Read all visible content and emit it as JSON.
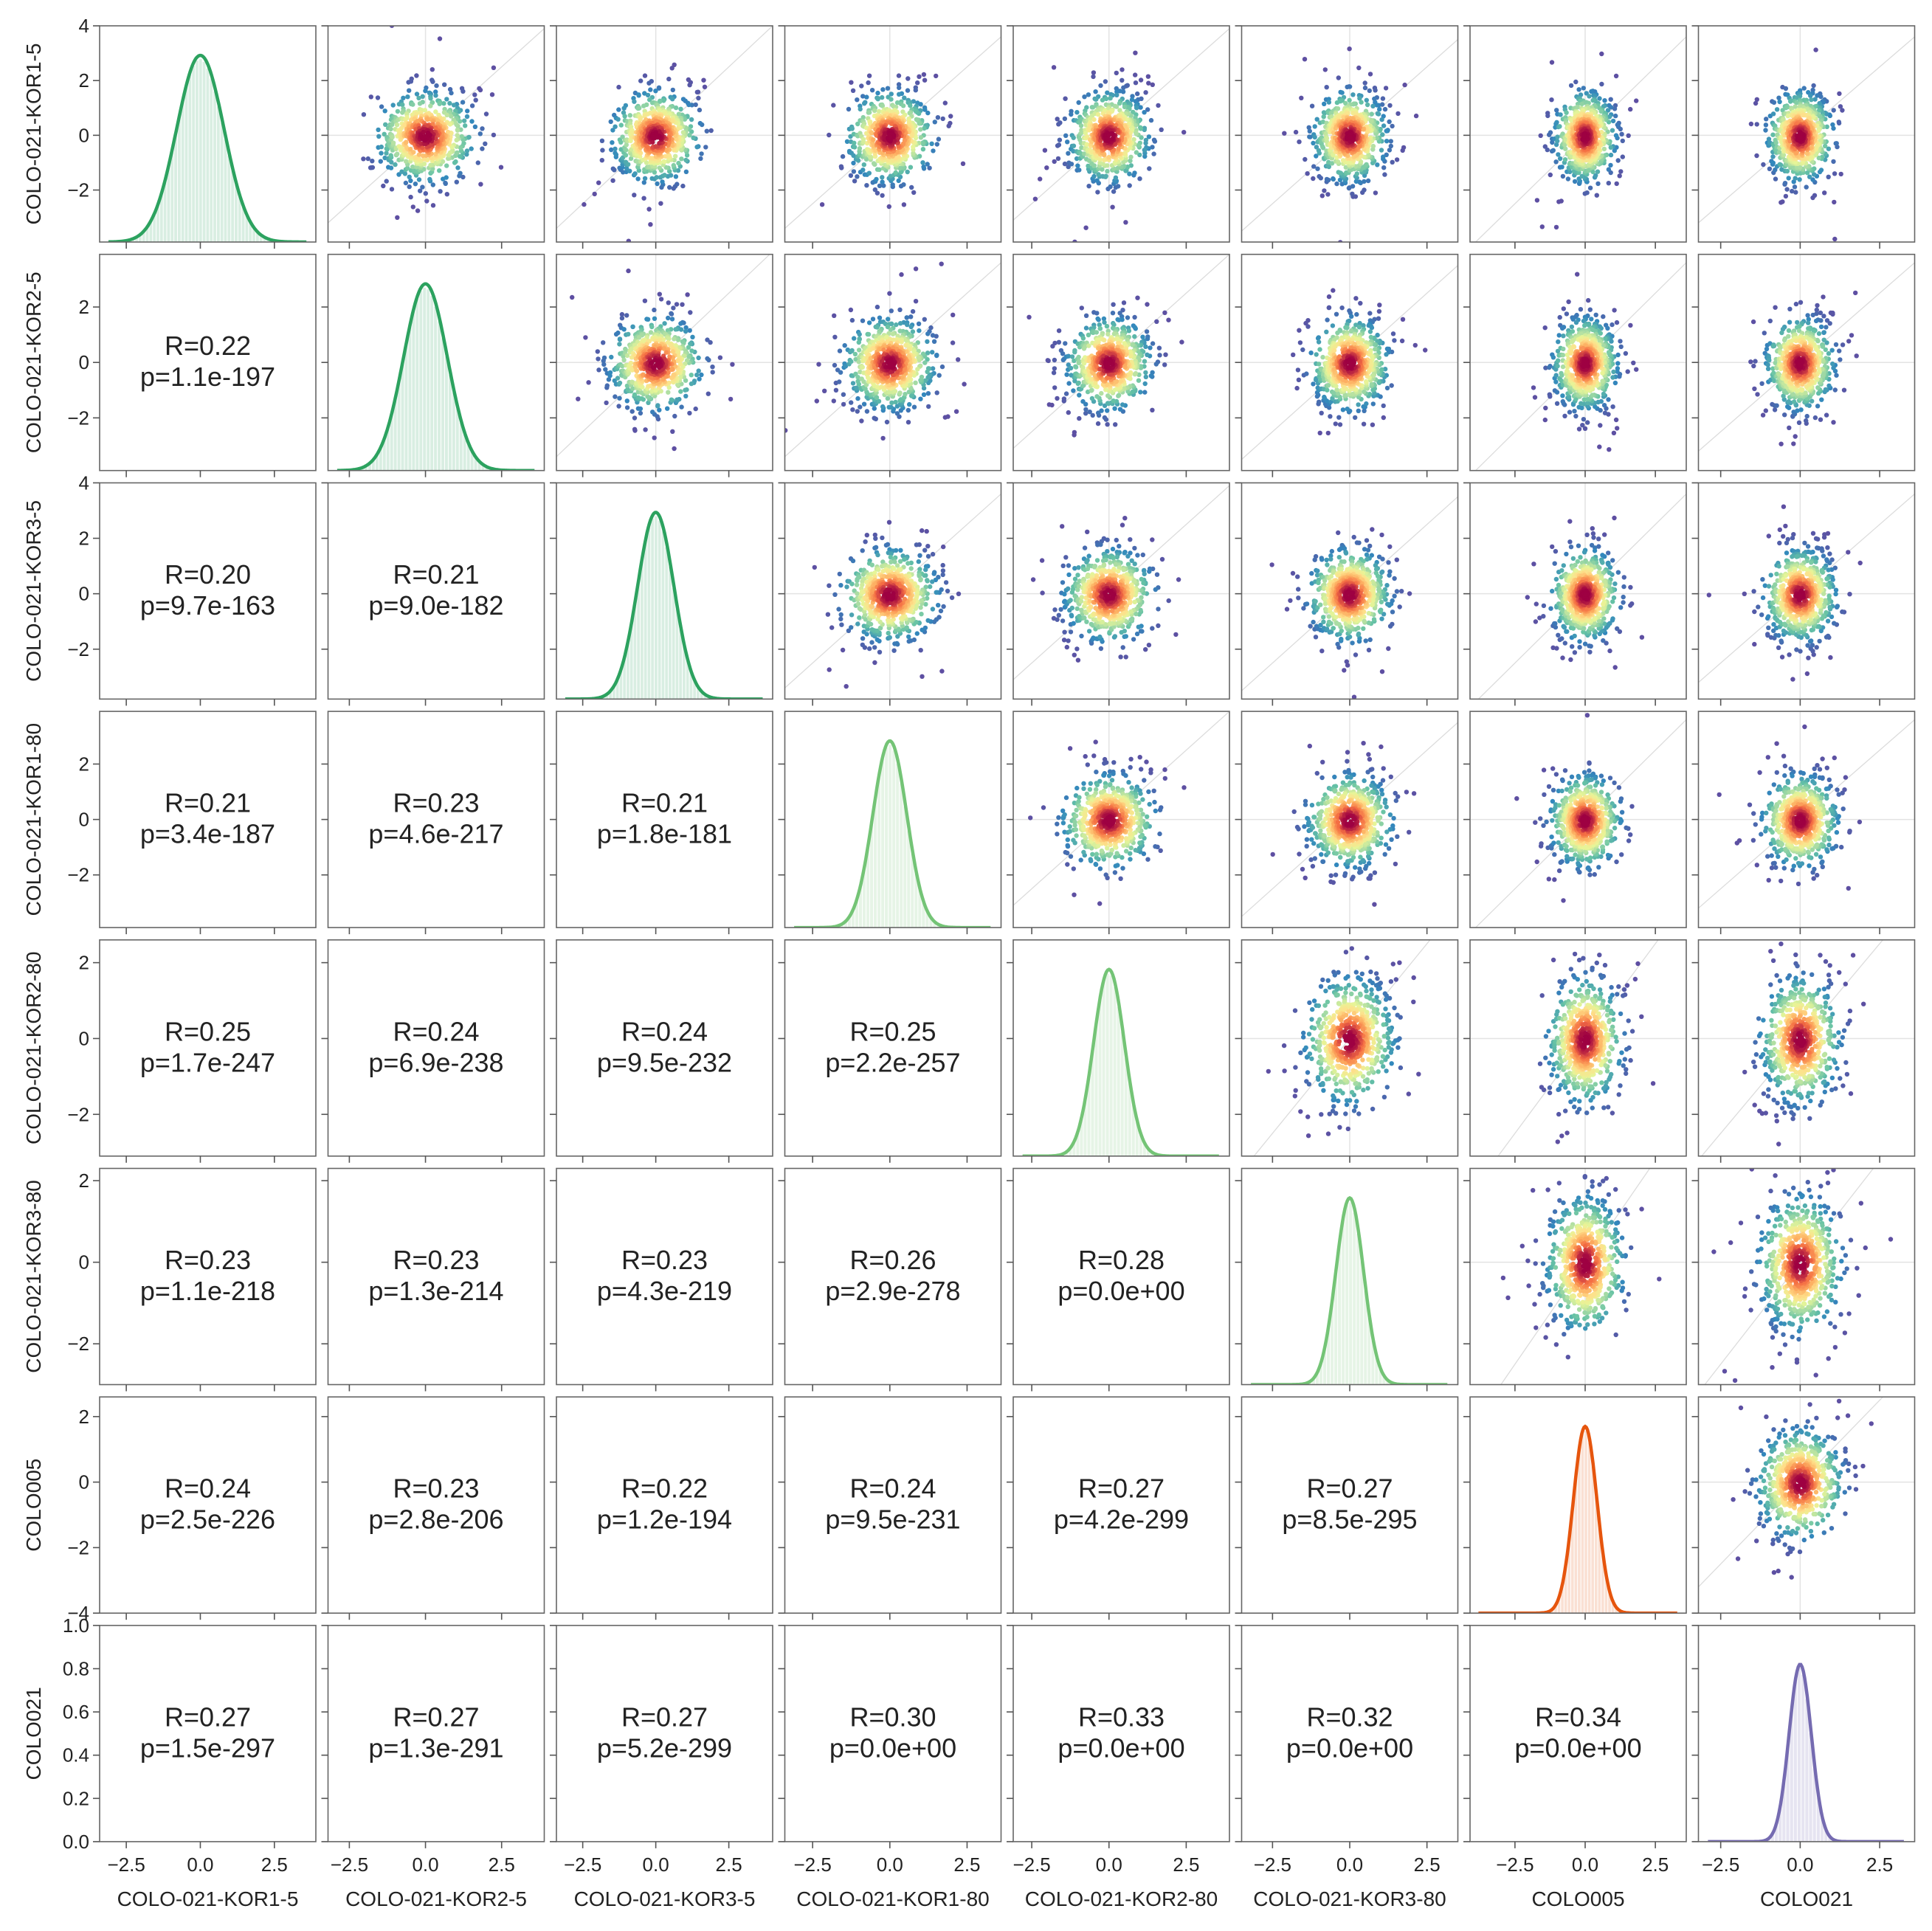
{
  "chart_data": {
    "type": "pairplot",
    "variables": [
      "COLO-021-KOR1-5",
      "COLO-021-KOR2-5",
      "COLO-021-KOR3-5",
      "COLO-021-KOR1-80",
      "COLO-021-KOR2-80",
      "COLO-021-KOR3-80",
      "COLO005",
      "COLO021"
    ],
    "diag_colors": [
      "#2ca25f",
      "#2ca25f",
      "#2ca25f",
      "#74c476",
      "#74c476",
      "#74c476",
      "#e6550d",
      "#756bb1"
    ],
    "x_ticks": [
      -2.5,
      0.0,
      2.5
    ],
    "x_tick_labels": [
      "−2.5",
      "0.0",
      "2.5"
    ],
    "x_ranges": [
      [
        -3.4,
        3.9
      ],
      [
        -3.2,
        3.9
      ],
      [
        -3.4,
        4.0
      ],
      [
        -3.4,
        3.6
      ],
      [
        -3.1,
        3.9
      ],
      [
        -3.5,
        3.5
      ],
      [
        -4.1,
        3.6
      ],
      [
        -3.2,
        3.6
      ]
    ],
    "y_axes": [
      {
        "ylim": [
          -3.9,
          4.0
        ],
        "ticks": [
          -2,
          0,
          2,
          4
        ],
        "labels": [
          "−2",
          "0",
          "2",
          "4"
        ]
      },
      {
        "ylim": [
          -3.9,
          3.9
        ],
        "ticks": [
          -2,
          0,
          2
        ],
        "labels": [
          "−2",
          "0",
          "2"
        ]
      },
      {
        "ylim": [
          -3.8,
          4.0
        ],
        "ticks": [
          -2,
          0,
          2,
          4
        ],
        "labels": [
          "−2",
          "0",
          "2",
          "4"
        ]
      },
      {
        "ylim": [
          -3.9,
          3.9
        ],
        "ticks": [
          -2,
          0,
          2
        ],
        "labels": [
          "−2",
          "0",
          "2"
        ]
      },
      {
        "ylim": [
          -3.1,
          2.6
        ],
        "ticks": [
          -2,
          0,
          2
        ],
        "labels": [
          "−2",
          "0",
          "2"
        ]
      },
      {
        "ylim": [
          -3.0,
          2.3
        ],
        "ticks": [
          -2,
          0,
          2
        ],
        "labels": [
          "−2",
          "0",
          "2"
        ]
      },
      {
        "ylim": [
          -4.0,
          2.6
        ],
        "ticks": [
          -4,
          -2,
          0,
          2
        ],
        "labels": [
          "−4",
          "−2",
          "0",
          "2"
        ]
      },
      {
        "ylim": [
          0.0,
          1.0
        ],
        "ticks": [
          0.0,
          0.2,
          0.4,
          0.6,
          0.8,
          1.0
        ],
        "labels": [
          "0.0",
          "0.2",
          "0.4",
          "0.6",
          "0.8",
          "1.0"
        ]
      }
    ],
    "correlations": [
      {
        "row": 1,
        "col": 0,
        "r": "R=0.22",
        "p": "p=1.1e-197"
      },
      {
        "row": 2,
        "col": 0,
        "r": "R=0.20",
        "p": "p=9.7e-163"
      },
      {
        "row": 2,
        "col": 1,
        "r": "R=0.21",
        "p": "p=9.0e-182"
      },
      {
        "row": 3,
        "col": 0,
        "r": "R=0.21",
        "p": "p=3.4e-187"
      },
      {
        "row": 3,
        "col": 1,
        "r": "R=0.23",
        "p": "p=4.6e-217"
      },
      {
        "row": 3,
        "col": 2,
        "r": "R=0.21",
        "p": "p=1.8e-181"
      },
      {
        "row": 4,
        "col": 0,
        "r": "R=0.25",
        "p": "p=1.7e-247"
      },
      {
        "row": 4,
        "col": 1,
        "r": "R=0.24",
        "p": "p=6.9e-238"
      },
      {
        "row": 4,
        "col": 2,
        "r": "R=0.24",
        "p": "p=9.5e-232"
      },
      {
        "row": 4,
        "col": 3,
        "r": "R=0.25",
        "p": "p=2.2e-257"
      },
      {
        "row": 5,
        "col": 0,
        "r": "R=0.23",
        "p": "p=1.1e-218"
      },
      {
        "row": 5,
        "col": 1,
        "r": "R=0.23",
        "p": "p=1.3e-214"
      },
      {
        "row": 5,
        "col": 2,
        "r": "R=0.23",
        "p": "p=4.3e-219"
      },
      {
        "row": 5,
        "col": 3,
        "r": "R=0.26",
        "p": "p=2.9e-278"
      },
      {
        "row": 5,
        "col": 4,
        "r": "R=0.28",
        "p": "p=0.0e+00"
      },
      {
        "row": 6,
        "col": 0,
        "r": "R=0.24",
        "p": "p=2.5e-226"
      },
      {
        "row": 6,
        "col": 1,
        "r": "R=0.23",
        "p": "p=2.8e-206"
      },
      {
        "row": 6,
        "col": 2,
        "r": "R=0.22",
        "p": "p=1.2e-194"
      },
      {
        "row": 6,
        "col": 3,
        "r": "R=0.24",
        "p": "p=9.5e-231"
      },
      {
        "row": 6,
        "col": 4,
        "r": "R=0.27",
        "p": "p=4.2e-299"
      },
      {
        "row": 6,
        "col": 5,
        "r": "R=0.27",
        "p": "p=8.5e-295"
      },
      {
        "row": 7,
        "col": 0,
        "r": "R=0.27",
        "p": "p=1.5e-297"
      },
      {
        "row": 7,
        "col": 1,
        "r": "R=0.27",
        "p": "p=1.3e-291"
      },
      {
        "row": 7,
        "col": 2,
        "r": "R=0.27",
        "p": "p=5.2e-299"
      },
      {
        "row": 7,
        "col": 3,
        "r": "R=0.30",
        "p": "p=0.0e+00"
      },
      {
        "row": 7,
        "col": 4,
        "r": "R=0.33",
        "p": "p=0.0e+00"
      },
      {
        "row": 7,
        "col": 5,
        "r": "R=0.32",
        "p": "p=0.0e+00"
      },
      {
        "row": 7,
        "col": 6,
        "r": "R=0.34",
        "p": "p=0.0e+00"
      }
    ],
    "diag_kde_sd": [
      0.8,
      0.72,
      0.62,
      0.55,
      0.5,
      0.45,
      0.42,
      0.35
    ],
    "scatter": {
      "center": [
        0.0,
        -0.05
      ],
      "colormap": "Spectral_r",
      "point_color_outer": "#5e4fa2",
      "point_color_core": "#9e0142"
    },
    "grid": true
  }
}
